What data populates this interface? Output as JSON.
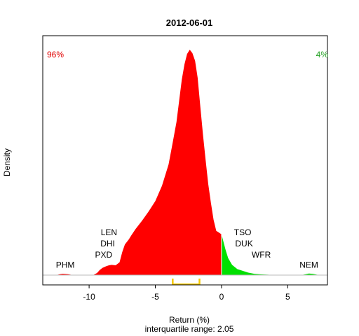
{
  "chart_data": {
    "type": "area",
    "title": "2012-06-01",
    "xlabel": "Return (%)",
    "ylabel": "Density",
    "subtitle": "interquartile range: 2.05",
    "xlim": [
      -13.5,
      8.0
    ],
    "ylim": [
      0,
      0.28
    ],
    "x_ticks": [
      -10,
      -5,
      0,
      5
    ],
    "x_tick_labels": [
      "-10",
      "-5",
      "0",
      "5"
    ],
    "grid": false,
    "baseline": 0,
    "split_at": 0,
    "colors": {
      "negative": "#ff0000",
      "positive": "#00e000",
      "iqr": "#f5c800",
      "left_pct": "#e00000",
      "right_pct": "#22a022",
      "baseline": "#bbbbbb"
    },
    "left_pct": "96%",
    "right_pct": "4%",
    "iqr_range": [
      -3.7,
      -1.65
    ],
    "density": {
      "x": [
        -13.0,
        -12.5,
        -12.2,
        -12.0,
        -11.6,
        -11.2,
        -10.5,
        -9.7,
        -9.4,
        -9.2,
        -9.0,
        -8.7,
        -8.5,
        -8.3,
        -8.0,
        -7.7,
        -7.5,
        -7.3,
        -7.0,
        -6.8,
        -6.5,
        -6.0,
        -5.5,
        -5.0,
        -4.5,
        -4.0,
        -3.7,
        -3.4,
        -3.2,
        -3.0,
        -2.8,
        -2.6,
        -2.4,
        -2.2,
        -2.0,
        -1.8,
        -1.6,
        -1.4,
        -1.2,
        -1.0,
        -0.8,
        -0.6,
        -0.4,
        -0.2,
        0.0,
        0.1,
        0.3,
        0.5,
        0.8,
        1.2,
        1.6,
        2.0,
        2.5,
        3.0,
        3.5,
        4.0,
        5.0,
        6.0,
        6.3,
        6.6,
        6.9,
        7.2,
        7.5
      ],
      "y": [
        0.0,
        0.0,
        0.001,
        0.0014,
        0.001,
        0.0,
        0.0,
        0.0,
        0.0025,
        0.006,
        0.0085,
        0.0105,
        0.0115,
        0.012,
        0.0115,
        0.015,
        0.027,
        0.036,
        0.042,
        0.047,
        0.054,
        0.064,
        0.075,
        0.087,
        0.105,
        0.13,
        0.155,
        0.18,
        0.205,
        0.23,
        0.248,
        0.26,
        0.265,
        0.261,
        0.252,
        0.232,
        0.198,
        0.165,
        0.135,
        0.107,
        0.085,
        0.065,
        0.052,
        0.05,
        0.048,
        0.042,
        0.03,
        0.02,
        0.012,
        0.007,
        0.005,
        0.003,
        0.0015,
        0.0008,
        0.0005,
        0.0,
        0.0,
        0.0,
        0.0008,
        0.0018,
        0.0015,
        0.0005,
        0.0
      ]
    },
    "stock_labels": [
      {
        "text": "PHM",
        "x": -11.8,
        "y": 0.012
      },
      {
        "text": "LEN",
        "x": -8.5,
        "y": 0.05
      },
      {
        "text": "DHI",
        "x": -8.6,
        "y": 0.037
      },
      {
        "text": "PXD",
        "x": -8.9,
        "y": 0.024
      },
      {
        "text": "TSO",
        "x": 1.6,
        "y": 0.05
      },
      {
        "text": "DUK",
        "x": 1.7,
        "y": 0.037
      },
      {
        "text": "WFR",
        "x": 3.0,
        "y": 0.024
      },
      {
        "text": "NEM",
        "x": 6.6,
        "y": 0.012
      }
    ]
  }
}
